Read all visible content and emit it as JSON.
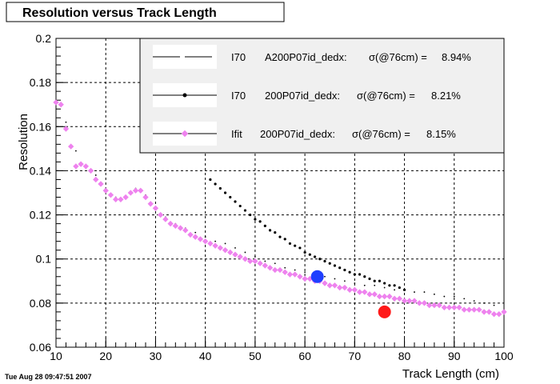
{
  "chart_data": {
    "type": "scatter",
    "title": "Resolution versus Track Length",
    "xlabel": "Track Length (cm)",
    "ylabel": "Resolution",
    "xlim": [
      10,
      100
    ],
    "ylim": [
      0.06,
      0.2
    ],
    "xticks": [
      "10",
      "20",
      "30",
      "40",
      "50",
      "60",
      "70",
      "80",
      "90",
      "100"
    ],
    "yticks": [
      "0.06",
      "0.08",
      "0.1",
      "0.12",
      "0.14",
      "0.16",
      "0.18",
      "0.2"
    ],
    "grid": true,
    "legend_position": "top-right",
    "timestamp": "Tue Aug 28 09:47:51 2007",
    "legend": [
      {
        "label": "I70",
        "detail": "A200P07id_dedx:",
        "sigma_label": "σ(@76cm) =",
        "sigma_value": "8.94%",
        "style": "dashed",
        "color": "#000000"
      },
      {
        "label": "I70",
        "detail": "200P07id_dedx:",
        "sigma_label": "σ(@76cm) =",
        "sigma_value": "8.21%",
        "style": "dotted-marker",
        "color": "#000000"
      },
      {
        "label": "Ifit",
        "detail": "200P07id_dedx:",
        "sigma_label": "σ(@76cm) =",
        "sigma_value": "8.15%",
        "style": "marker",
        "color": "#ee82ee"
      }
    ],
    "series": [
      {
        "name": "I70 A200P07id_dedx",
        "color": "#000000",
        "marker": "tiny",
        "x": [
          10,
          12,
          14,
          16,
          18,
          20,
          22,
          24,
          26,
          28,
          30,
          32,
          34,
          36,
          38,
          40,
          42,
          44,
          46,
          48,
          50,
          52,
          54,
          56,
          58,
          60,
          62,
          64,
          66,
          68,
          70,
          72,
          74,
          76,
          78,
          80,
          82,
          84,
          86,
          88,
          90,
          92,
          94,
          96,
          98,
          100
        ],
        "y": [
          0.172,
          0.162,
          0.149,
          0.142,
          0.138,
          0.132,
          0.128,
          0.128,
          0.132,
          0.129,
          0.123,
          0.119,
          0.116,
          0.114,
          0.112,
          0.11,
          0.108,
          0.107,
          0.105,
          0.103,
          0.101,
          0.099,
          0.098,
          0.096,
          0.095,
          0.094,
          0.093,
          0.092,
          0.091,
          0.09,
          0.089,
          0.088,
          0.088,
          0.087,
          0.086,
          0.086,
          0.085,
          0.085,
          0.084,
          0.083,
          0.083,
          0.082,
          0.081,
          0.08,
          0.079,
          0.077
        ]
      },
      {
        "name": "I70 200P07id_dedx",
        "color": "#000000",
        "marker": "small",
        "x": [
          41,
          42,
          43,
          44,
          45,
          46,
          47,
          48,
          49,
          50,
          51,
          52,
          53,
          54,
          55,
          56,
          57,
          58,
          59,
          60,
          61,
          62,
          63,
          64,
          65,
          66,
          67,
          68,
          69,
          70,
          71,
          72,
          73,
          74,
          75,
          76,
          77,
          78,
          79,
          80
        ],
        "y": [
          0.136,
          0.134,
          0.132,
          0.13,
          0.128,
          0.126,
          0.124,
          0.122,
          0.12,
          0.118,
          0.117,
          0.115,
          0.113,
          0.112,
          0.11,
          0.109,
          0.107,
          0.106,
          0.105,
          0.103,
          0.102,
          0.101,
          0.1,
          0.099,
          0.098,
          0.097,
          0.096,
          0.095,
          0.094,
          0.093,
          0.093,
          0.092,
          0.091,
          0.09,
          0.09,
          0.089,
          0.088,
          0.088,
          0.087,
          0.086
        ]
      },
      {
        "name": "Ifit 200P07id_dedx",
        "color": "#ee82ee",
        "marker": "diamond",
        "x": [
          10,
          11,
          12,
          13,
          14,
          15,
          16,
          17,
          18,
          19,
          20,
          21,
          22,
          23,
          24,
          25,
          26,
          27,
          28,
          29,
          30,
          31,
          32,
          33,
          34,
          35,
          36,
          37,
          38,
          39,
          40,
          41,
          42,
          43,
          44,
          45,
          46,
          47,
          48,
          49,
          50,
          51,
          52,
          53,
          54,
          55,
          56,
          57,
          58,
          59,
          60,
          61,
          62,
          63,
          64,
          65,
          66,
          67,
          68,
          69,
          70,
          71,
          72,
          73,
          74,
          75,
          76,
          77,
          78,
          79,
          80,
          81,
          82,
          83,
          84,
          85,
          86,
          87,
          88,
          89,
          90,
          91,
          92,
          93,
          94,
          95,
          96,
          97,
          98,
          99,
          100
        ],
        "y": [
          0.171,
          0.17,
          0.159,
          0.151,
          0.142,
          0.143,
          0.142,
          0.14,
          0.136,
          0.134,
          0.131,
          0.129,
          0.127,
          0.127,
          0.128,
          0.13,
          0.131,
          0.131,
          0.128,
          0.125,
          0.123,
          0.12,
          0.118,
          0.116,
          0.115,
          0.114,
          0.113,
          0.111,
          0.11,
          0.109,
          0.108,
          0.107,
          0.106,
          0.105,
          0.104,
          0.103,
          0.102,
          0.101,
          0.1,
          0.099,
          0.099,
          0.098,
          0.097,
          0.096,
          0.095,
          0.095,
          0.094,
          0.093,
          0.093,
          0.092,
          0.091,
          0.091,
          0.09,
          0.09,
          0.089,
          0.088,
          0.088,
          0.087,
          0.087,
          0.086,
          0.086,
          0.085,
          0.085,
          0.084,
          0.084,
          0.083,
          0.083,
          0.083,
          0.082,
          0.082,
          0.081,
          0.081,
          0.081,
          0.08,
          0.08,
          0.079,
          0.079,
          0.079,
          0.078,
          0.078,
          0.078,
          0.078,
          0.077,
          0.077,
          0.077,
          0.077,
          0.076,
          0.076,
          0.075,
          0.075,
          0.076
        ]
      },
      {
        "name": "reference point blue",
        "color": "#1f3fff",
        "marker": "big-circle",
        "x": [
          62.5
        ],
        "y": [
          0.092
        ]
      },
      {
        "name": "reference point red",
        "color": "#ff1a1a",
        "marker": "big-circle",
        "x": [
          76
        ],
        "y": [
          0.076
        ]
      }
    ]
  }
}
